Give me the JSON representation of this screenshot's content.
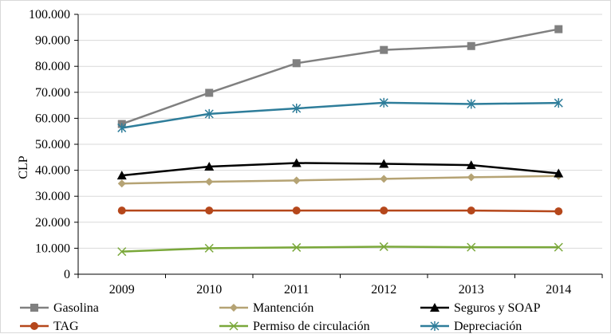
{
  "chart_data": {
    "type": "line",
    "categories": [
      "2009",
      "2010",
      "2011",
      "2012",
      "2013",
      "2014"
    ],
    "ylabel": "CLP",
    "ylim": [
      0,
      100000
    ],
    "y_ticks": [
      "0",
      "10.000",
      "20.000",
      "30.000",
      "40.000",
      "50.000",
      "60.000",
      "70.000",
      "80.000",
      "90.000",
      "100.000"
    ],
    "grid": "horizontal",
    "legend_position": "bottom",
    "series": [
      {
        "name": "Gasolina",
        "color": "#808080",
        "marker": "square",
        "values": [
          57800,
          69800,
          81200,
          86300,
          87800,
          94300
        ]
      },
      {
        "name": "Mantención",
        "color": "#b5a374",
        "marker": "diamond",
        "values": [
          34900,
          35600,
          36100,
          36700,
          37300,
          37800
        ]
      },
      {
        "name": "Seguros y SOAP",
        "color": "#000000",
        "marker": "triangle",
        "values": [
          38000,
          41400,
          42800,
          42500,
          42000,
          38800
        ]
      },
      {
        "name": "TAG",
        "color": "#b5471b",
        "marker": "circle",
        "values": [
          24500,
          24500,
          24500,
          24500,
          24500,
          24200
        ]
      },
      {
        "name": "Permiso de circulación",
        "color": "#7aa83a",
        "marker": "x",
        "values": [
          8700,
          10000,
          10300,
          10600,
          10400,
          10400
        ]
      },
      {
        "name": "Depreciación",
        "color": "#2e7d9a",
        "marker": "star",
        "values": [
          56300,
          61700,
          63800,
          66000,
          65500,
          65900
        ]
      }
    ]
  }
}
